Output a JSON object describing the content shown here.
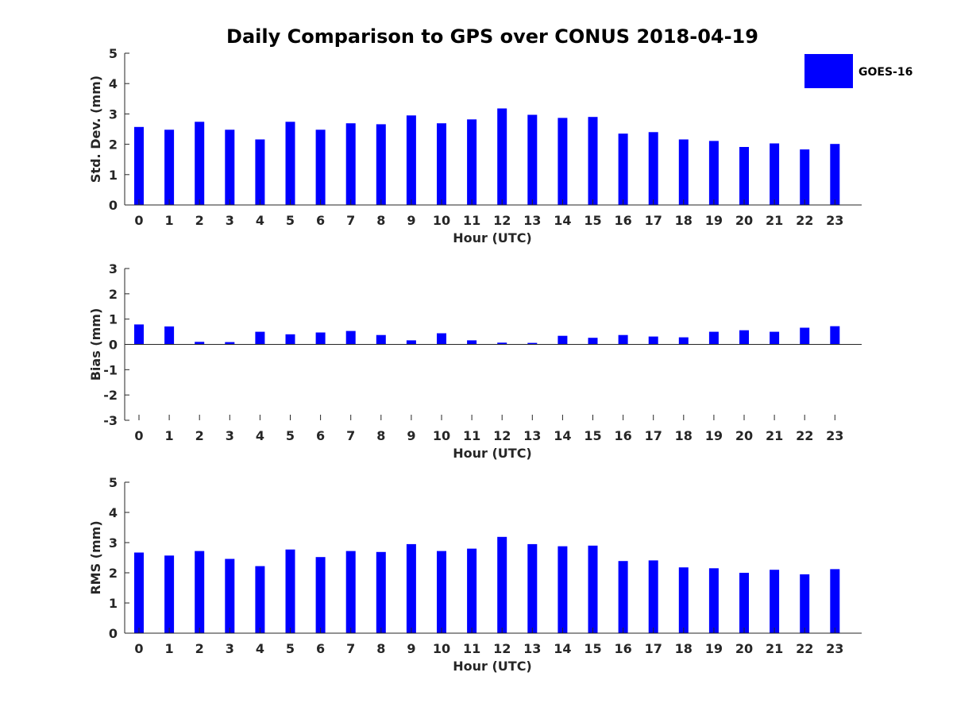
{
  "figure_title": "Daily Comparison to GPS over CONUS 2018-04-19",
  "legend": {
    "label": "GOES-16",
    "color": "#0000ff"
  },
  "bar_color": "#0000ff",
  "chart_data": [
    {
      "type": "bar",
      "id": "stddev",
      "title": "Daily Comparison to GPS over CONUS 2018-04-19",
      "xlabel": "Hour (UTC)",
      "ylabel": "Std. Dev. (mm)",
      "ylim": [
        0,
        5
      ],
      "yticks": [
        0,
        1,
        2,
        3,
        4,
        5
      ],
      "categories": [
        "0",
        "1",
        "2",
        "3",
        "4",
        "5",
        "6",
        "7",
        "8",
        "9",
        "10",
        "11",
        "12",
        "13",
        "14",
        "15",
        "16",
        "17",
        "18",
        "19",
        "20",
        "21",
        "22",
        "23"
      ],
      "series": [
        {
          "name": "GOES-16",
          "values": [
            2.57,
            2.48,
            2.74,
            2.48,
            2.16,
            2.74,
            2.48,
            2.69,
            2.66,
            2.95,
            2.69,
            2.82,
            3.18,
            2.97,
            2.87,
            2.9,
            2.35,
            2.4,
            2.16,
            2.11,
            1.91,
            2.03,
            1.83,
            2.01
          ]
        }
      ]
    },
    {
      "type": "bar",
      "id": "bias",
      "xlabel": "Hour (UTC)",
      "ylabel": "Bias (mm)",
      "ylim": [
        -3,
        3
      ],
      "yticks": [
        -3,
        -2,
        -1,
        0,
        1,
        2,
        3
      ],
      "categories": [
        "0",
        "1",
        "2",
        "3",
        "4",
        "5",
        "6",
        "7",
        "8",
        "9",
        "10",
        "11",
        "12",
        "13",
        "14",
        "15",
        "16",
        "17",
        "18",
        "19",
        "20",
        "21",
        "22",
        "23"
      ],
      "series": [
        {
          "name": "GOES-16",
          "values": [
            0.79,
            0.71,
            0.1,
            0.09,
            0.5,
            0.4,
            0.47,
            0.53,
            0.37,
            0.16,
            0.44,
            0.16,
            0.07,
            0.06,
            0.34,
            0.26,
            0.37,
            0.31,
            0.28,
            0.5,
            0.56,
            0.5,
            0.66,
            0.72
          ]
        }
      ]
    },
    {
      "type": "bar",
      "id": "rms",
      "xlabel": "Hour (UTC)",
      "ylabel": "RMS (mm)",
      "ylim": [
        0,
        5
      ],
      "yticks": [
        0,
        1,
        2,
        3,
        4,
        5
      ],
      "categories": [
        "0",
        "1",
        "2",
        "3",
        "4",
        "5",
        "6",
        "7",
        "8",
        "9",
        "10",
        "11",
        "12",
        "13",
        "14",
        "15",
        "16",
        "17",
        "18",
        "19",
        "20",
        "21",
        "22",
        "23"
      ],
      "series": [
        {
          "name": "GOES-16",
          "values": [
            2.67,
            2.57,
            2.72,
            2.46,
            2.22,
            2.77,
            2.52,
            2.72,
            2.69,
            2.95,
            2.72,
            2.8,
            3.19,
            2.95,
            2.88,
            2.9,
            2.39,
            2.41,
            2.18,
            2.15,
            2.0,
            2.1,
            1.95,
            2.12
          ]
        }
      ]
    }
  ]
}
